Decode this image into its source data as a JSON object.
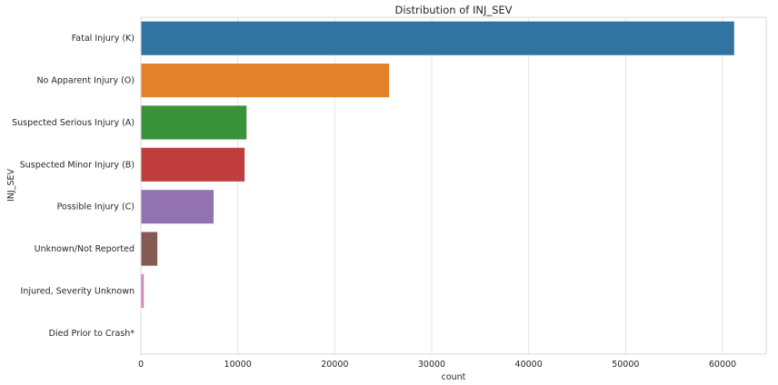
{
  "chart_data": {
    "type": "bar",
    "orientation": "horizontal",
    "title": "Distribution of INJ_SEV",
    "xlabel": "count",
    "ylabel": "INJ_SEV",
    "xlim": [
      0,
      64500
    ],
    "x_ticks": [
      0,
      10000,
      20000,
      30000,
      40000,
      50000,
      60000
    ],
    "grid": "vertical",
    "categories": [
      "Fatal Injury (K)",
      "No Apparent Injury (O)",
      "Suspected Serious Injury (A)",
      "Suspected Minor Injury (B)",
      "Possible Injury (C)",
      "Unknown/Not Reported",
      "Injured, Severity Unknown",
      "Died Prior to Crash*"
    ],
    "values": [
      61200,
      25600,
      10900,
      10700,
      7500,
      1700,
      300,
      0
    ],
    "colors": [
      "#3274a1",
      "#e1812c",
      "#3a923a",
      "#c03d3e",
      "#9372b2",
      "#845b53",
      "#d684bd",
      "#7f7f7f"
    ]
  }
}
